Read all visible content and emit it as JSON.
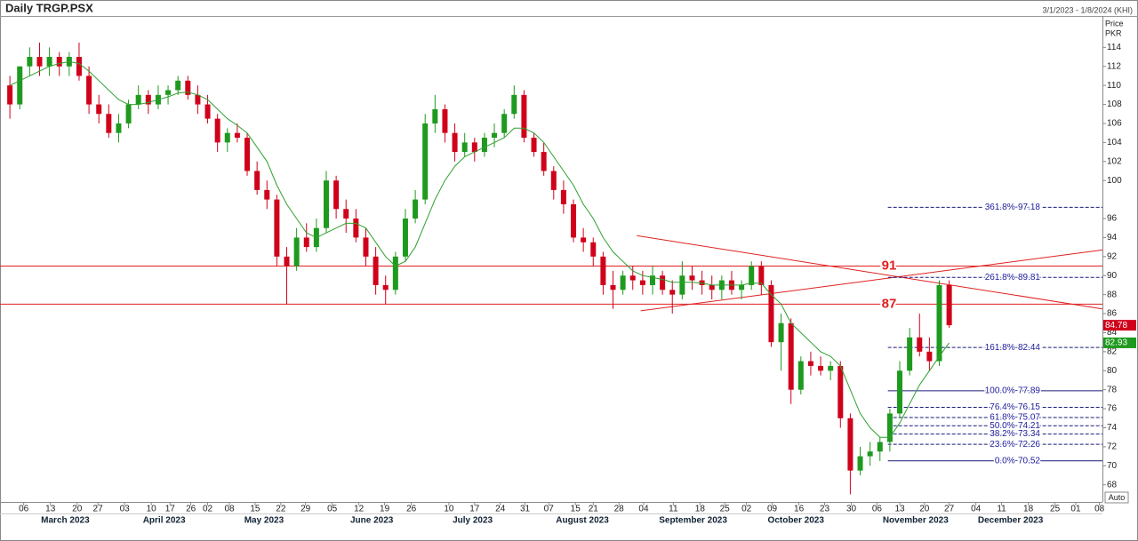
{
  "chart_data": {
    "type": "candlestick",
    "title": "Daily TRGP.PSX",
    "date_range": "3/1/2023 - 1/8/2024 (KHI)",
    "y_label": "Price",
    "y_unit": "PKR",
    "auto_button": "Auto",
    "up_color": "#1e9a1e",
    "down_color": "#d0021b",
    "ma_color": "#2ea02e",
    "open": [
      110,
      108,
      112,
      113,
      112,
      113,
      112,
      113,
      111,
      108,
      107,
      105,
      106,
      108,
      109,
      108,
      109,
      109.5,
      110.5,
      109,
      108,
      106.5,
      104,
      105,
      104.5,
      101,
      99,
      98,
      92,
      91,
      94,
      93,
      95,
      100,
      97,
      96,
      94,
      92,
      89,
      88.5,
      92,
      96,
      98,
      106,
      107.5,
      105,
      103,
      104,
      103,
      104.5,
      105,
      107,
      109,
      104.5,
      103,
      101,
      99,
      97.5,
      94,
      93.5,
      92,
      89,
      88.5,
      90,
      89.5,
      89,
      90,
      88.5,
      88,
      90,
      89.5,
      89,
      88.5,
      89.5,
      88.5,
      89,
      91,
      89,
      83,
      85,
      78,
      81,
      80.5,
      80,
      80.5,
      75,
      69.5,
      71,
      71.5,
      72.5,
      75.5,
      80,
      83.5,
      82,
      81,
      89
    ],
    "high": [
      111,
      112,
      114,
      114.5,
      114,
      113.5,
      113.5,
      114.5,
      112,
      109,
      108,
      107,
      108.5,
      110,
      109.5,
      110,
      110,
      111,
      111,
      110,
      109,
      107,
      105.5,
      106,
      105,
      102,
      100,
      98.5,
      93,
      95,
      95.5,
      96,
      101,
      100.5,
      98,
      97,
      95,
      93,
      90,
      92.5,
      97,
      99,
      107,
      109,
      108,
      106,
      105,
      104.5,
      105,
      106,
      107.5,
      110,
      109.5,
      105,
      104,
      101.5,
      100,
      98,
      95,
      94,
      92.5,
      90.5,
      90.5,
      91,
      90.5,
      91,
      90.5,
      89.5,
      91.5,
      91,
      90.5,
      90,
      90,
      90.5,
      89.5,
      91.5,
      91.5,
      89.5,
      86,
      85.5,
      81.5,
      82,
      81.5,
      81,
      81,
      75.5,
      72,
      72.5,
      73,
      76,
      81,
      84.5,
      86,
      83.5,
      89.5,
      89.5
    ],
    "low": [
      106.5,
      107.5,
      111,
      111,
      111,
      111,
      111,
      110.5,
      107,
      106,
      104.5,
      104,
      105.5,
      107.5,
      107,
      107.5,
      108,
      109,
      108.5,
      107,
      106,
      103,
      103,
      104,
      100.5,
      98.5,
      97,
      91,
      87,
      90.5,
      92.5,
      92.5,
      94.5,
      96,
      94.5,
      93.5,
      91,
      88,
      87,
      88,
      91.5,
      95.5,
      97.5,
      105,
      104,
      102,
      102.5,
      102,
      102.5,
      103.5,
      104.5,
      106.5,
      104,
      102.5,
      100.5,
      98,
      96.5,
      93.5,
      92.5,
      91,
      88,
      86.5,
      88,
      88.5,
      88,
      88,
      88,
      86,
      87.5,
      88.5,
      88,
      87.5,
      87.5,
      88,
      87.5,
      88.5,
      88,
      82.5,
      80,
      76.5,
      77.5,
      79.5,
      79.5,
      79,
      74,
      67,
      69,
      70,
      70.5,
      71.5,
      75,
      79.5,
      81.5,
      80,
      80.5,
      84.5
    ],
    "close": [
      108,
      112,
      113,
      112,
      113,
      112,
      113,
      111,
      108,
      107,
      105,
      106,
      108,
      109,
      108,
      109,
      109.5,
      110.5,
      109,
      108,
      106.5,
      104,
      105,
      104.5,
      101,
      99,
      98,
      92,
      91,
      94,
      93,
      95,
      100,
      97,
      96,
      94,
      92,
      89,
      88.5,
      92,
      96,
      98,
      106,
      107.5,
      105,
      103,
      104,
      103,
      104.5,
      105,
      107,
      109,
      104.5,
      103,
      101,
      99,
      97.5,
      94,
      93.5,
      92,
      89,
      88.5,
      90,
      89.5,
      89,
      90,
      88.5,
      88,
      90,
      89.5,
      89,
      88.5,
      89.5,
      88.5,
      89,
      91,
      89,
      83,
      85,
      78,
      81,
      80.5,
      80,
      80.5,
      75,
      69.5,
      71,
      71.5,
      72.5,
      75.5,
      80,
      83.5,
      82,
      81,
      89,
      84.78
    ],
    "ma": [
      110,
      110.5,
      111,
      111.5,
      112,
      112.3,
      112.5,
      112.3,
      111.5,
      110.5,
      109.5,
      108.5,
      108,
      108,
      108.2,
      108.5,
      108.8,
      109.2,
      109.3,
      109,
      108.5,
      107.5,
      106.5,
      105.8,
      105,
      103.5,
      102,
      99.5,
      97.5,
      96,
      94.5,
      94,
      94.5,
      95,
      95.5,
      95.5,
      95,
      93.5,
      92,
      91,
      91.5,
      93,
      95.5,
      98,
      100,
      101.5,
      102.5,
      103,
      103.5,
      104,
      104.5,
      105.5,
      105.5,
      105,
      104,
      102.5,
      101,
      99.5,
      97.5,
      96,
      94,
      92.5,
      91.5,
      90.5,
      90,
      89.8,
      89.6,
      89.3,
      89.3,
      89.3,
      89.2,
      89,
      89,
      89,
      89,
      89.2,
      89.2,
      88,
      87,
      85,
      84,
      83,
      82,
      81.5,
      80.5,
      78,
      75.5,
      74,
      73,
      73,
      74.5,
      76.5,
      78.5,
      80,
      81.5,
      82.93
    ],
    "xlim": [
      -1,
      110.5
    ],
    "ylim": [
      66.2,
      117.3
    ],
    "yticks": [
      68,
      70,
      72,
      74,
      76,
      78,
      80,
      82,
      84,
      86,
      88,
      90,
      92,
      94,
      96,
      100,
      102,
      104,
      106,
      108,
      110,
      112,
      114
    ],
    "xticks": [
      {
        "value": 1.4,
        "label": "06"
      },
      {
        "value": 4.1,
        "label": "13"
      },
      {
        "value": 6.8,
        "label": "20"
      },
      {
        "value": 8.9,
        "label": "27"
      },
      {
        "value": 11.6,
        "label": "03"
      },
      {
        "value": 14.3,
        "label": "10"
      },
      {
        "value": 16.2,
        "label": "17"
      },
      {
        "value": 18.3,
        "label": "26"
      },
      {
        "value": 20.0,
        "label": "02"
      },
      {
        "value": 22.2,
        "label": "08"
      },
      {
        "value": 24.8,
        "label": "15"
      },
      {
        "value": 27.4,
        "label": "22"
      },
      {
        "value": 29.9,
        "label": "29"
      },
      {
        "value": 32.6,
        "label": "05"
      },
      {
        "value": 35.3,
        "label": "12"
      },
      {
        "value": 37.9,
        "label": "19"
      },
      {
        "value": 40.6,
        "label": "26"
      },
      {
        "value": 44.4,
        "label": "10"
      },
      {
        "value": 47.0,
        "label": "17"
      },
      {
        "value": 49.6,
        "label": "24"
      },
      {
        "value": 52.1,
        "label": "31"
      },
      {
        "value": 54.5,
        "label": "07"
      },
      {
        "value": 57.2,
        "label": "15"
      },
      {
        "value": 59.0,
        "label": "21"
      },
      {
        "value": 61.6,
        "label": "28"
      },
      {
        "value": 64.1,
        "label": "04"
      },
      {
        "value": 67.1,
        "label": "11"
      },
      {
        "value": 69.8,
        "label": "18"
      },
      {
        "value": 72.3,
        "label": "25"
      },
      {
        "value": 74.5,
        "label": "02"
      },
      {
        "value": 77.1,
        "label": "09"
      },
      {
        "value": 79.8,
        "label": "16"
      },
      {
        "value": 82.4,
        "label": "23"
      },
      {
        "value": 85.1,
        "label": "30"
      },
      {
        "value": 87.7,
        "label": "06"
      },
      {
        "value": 90.0,
        "label": "13"
      },
      {
        "value": 92.5,
        "label": "20"
      },
      {
        "value": 95.0,
        "label": "27"
      },
      {
        "value": 97.7,
        "label": "04"
      },
      {
        "value": 100.3,
        "label": "11"
      },
      {
        "value": 103.0,
        "label": "18"
      },
      {
        "value": 105.7,
        "label": "25"
      },
      {
        "value": 107.8,
        "label": "01"
      },
      {
        "value": 110.2,
        "label": "08"
      }
    ],
    "months": [
      {
        "value": 5.6,
        "label": "March 2023"
      },
      {
        "value": 15.6,
        "label": "April 2023"
      },
      {
        "value": 25.7,
        "label": "May 2023"
      },
      {
        "value": 36.6,
        "label": "June 2023"
      },
      {
        "value": 46.8,
        "label": "July 2023"
      },
      {
        "value": 57.9,
        "label": "August 2023"
      },
      {
        "value": 69.1,
        "label": "September 2023"
      },
      {
        "value": 79.5,
        "label": "October 2023"
      },
      {
        "value": 91.6,
        "label": "November 2023"
      },
      {
        "value": 101.2,
        "label": "December 2023"
      }
    ],
    "hlines": [
      {
        "value": 91,
        "label": "91"
      },
      {
        "value": 87,
        "label": "87"
      }
    ],
    "trendlines": [
      {
        "x": [
          63.4,
          110.5
        ],
        "y": [
          94.2,
          86.5
        ]
      },
      {
        "x": [
          63.8,
          110.5
        ],
        "y": [
          86.3,
          92.7
        ]
      }
    ],
    "fib_start": 88.8,
    "fib_levels": [
      {
        "value": 97.18,
        "label": "361.8%-97.18"
      },
      {
        "value": 89.81,
        "label": "261.8%-89.81"
      },
      {
        "value": 82.44,
        "label": "161.8%-82.44"
      },
      {
        "value": 77.89,
        "label": "100.0%-77.89"
      },
      {
        "value": 76.15,
        "label": "76.4%-76.15"
      },
      {
        "value": 75.07,
        "label": "61.8%-75.07"
      },
      {
        "value": 74.21,
        "label": "50.0%-74.21"
      },
      {
        "value": 73.34,
        "label": "38.2%-73.34"
      },
      {
        "value": 72.26,
        "label": "23.6%-72.26"
      },
      {
        "value": 70.52,
        "label": "0.0%-70.52"
      }
    ]
  }
}
